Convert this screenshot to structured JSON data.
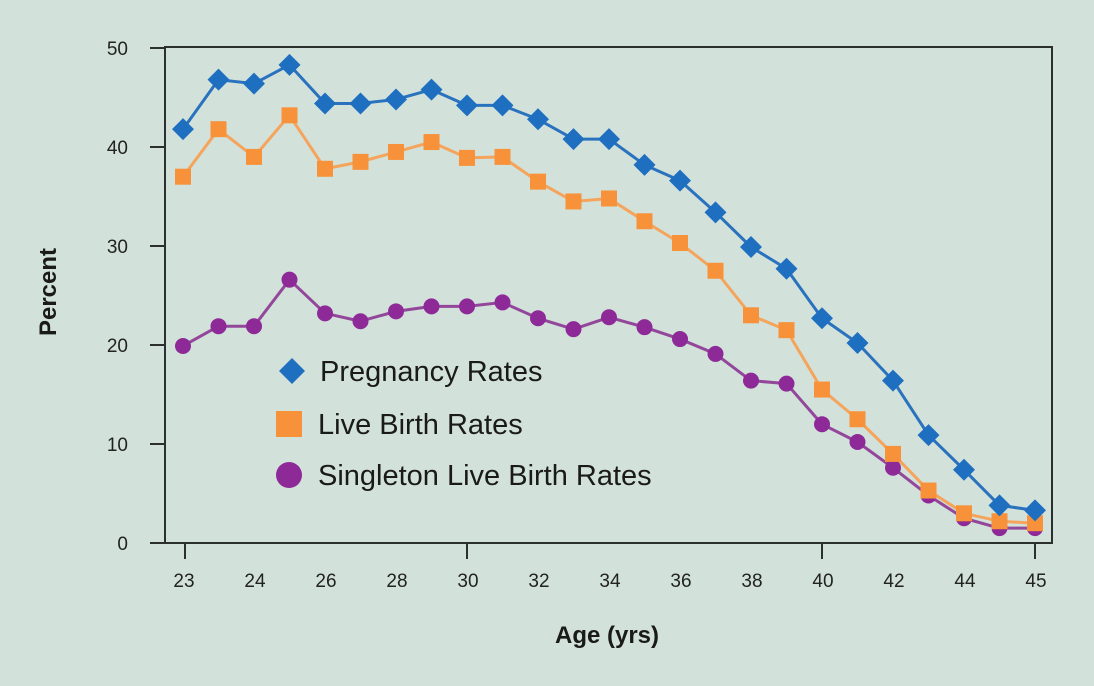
{
  "chart_data": {
    "type": "line",
    "title": "",
    "xlabel": "Age (yrs)",
    "ylabel": "Percent",
    "ylim": [
      0,
      50
    ],
    "yticks": [
      0,
      10,
      20,
      30,
      40,
      50
    ],
    "point_count": 25,
    "xtick_labels": [
      {
        "index": 0,
        "label": "23"
      },
      {
        "index": 2,
        "label": "24"
      },
      {
        "index": 4,
        "label": "26"
      },
      {
        "index": 6,
        "label": "28"
      },
      {
        "index": 8,
        "label": "30"
      },
      {
        "index": 10,
        "label": "32"
      },
      {
        "index": 12,
        "label": "34"
      },
      {
        "index": 14,
        "label": "36"
      },
      {
        "index": 16,
        "label": "38"
      },
      {
        "index": 18,
        "label": "40"
      },
      {
        "index": 20,
        "label": "42"
      },
      {
        "index": 22,
        "label": "44"
      },
      {
        "index": 24,
        "label": "45"
      }
    ],
    "xtick_marks_at_index": [
      0,
      8,
      18,
      24
    ],
    "grid": false,
    "legend_position": "lower-left-inside",
    "series": [
      {
        "name": "Pregnancy Rates",
        "marker": "diamond",
        "color": "#1f6fc1",
        "line_color": "#2a72be",
        "values": [
          41.8,
          46.8,
          46.4,
          48.3,
          44.4,
          44.4,
          44.8,
          45.8,
          44.2,
          44.2,
          42.8,
          40.8,
          40.8,
          38.2,
          36.6,
          33.4,
          29.9,
          27.7,
          22.7,
          20.2,
          16.4,
          10.9,
          7.4,
          3.8,
          3.3
        ]
      },
      {
        "name": "Live Birth Rates",
        "marker": "square",
        "color": "#f7923a",
        "line_color": "#f5a45c",
        "values": [
          37.0,
          41.8,
          39.0,
          43.2,
          37.8,
          38.5,
          39.5,
          40.5,
          38.9,
          39.0,
          36.5,
          34.5,
          34.8,
          32.5,
          30.3,
          27.5,
          23.0,
          21.5,
          15.5,
          12.5,
          9.0,
          5.3,
          3.0,
          2.2,
          2.0
        ]
      },
      {
        "name": "Singleton Live Birth Rates",
        "marker": "circle",
        "color": "#8e2a97",
        "line_color": "#93479a",
        "values": [
          19.9,
          21.9,
          21.9,
          26.6,
          23.2,
          22.4,
          23.4,
          23.9,
          23.9,
          24.3,
          22.7,
          21.6,
          22.8,
          21.8,
          20.6,
          19.1,
          16.4,
          16.1,
          12.0,
          10.2,
          7.6,
          4.8,
          2.5,
          1.5,
          1.5
        ]
      }
    ]
  }
}
